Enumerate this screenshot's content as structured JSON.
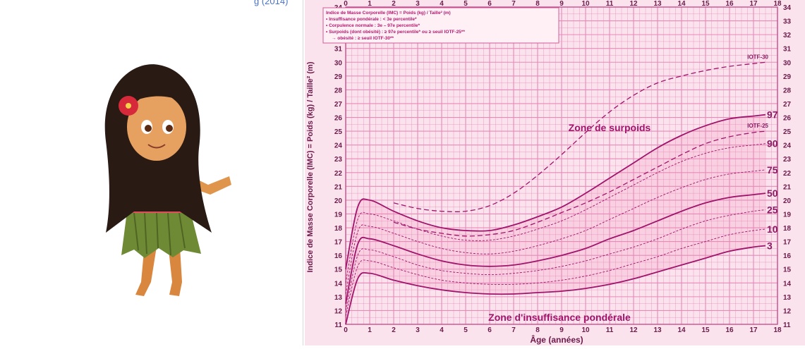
{
  "top_link": "g (2014)",
  "chart_data": {
    "type": "line",
    "xlabel": "Âge (années)",
    "ylabel": "Indice de Masse Corporelle (IMC) = Poids (kg) / Taille² (m)",
    "xlim": [
      0,
      18
    ],
    "ylim": [
      11,
      34
    ],
    "x_ticks": [
      "0",
      "1",
      "2",
      "3",
      "4",
      "5",
      "6",
      "7",
      "8",
      "9",
      "10",
      "11",
      "12",
      "13",
      "14",
      "15",
      "16",
      "17",
      "18"
    ],
    "y_ticks": [
      "11",
      "12",
      "13",
      "14",
      "15",
      "16",
      "17",
      "18",
      "19",
      "20",
      "21",
      "22",
      "23",
      "24",
      "25",
      "26",
      "27",
      "28",
      "29",
      "30",
      "31",
      "32",
      "33",
      "34"
    ],
    "grid": true,
    "legend": [
      "Indice de Masse Corporelle (IMC) = Poids (kg) / Taille² (m)",
      "• Insuffisance pondérale : < 3e percentile*",
      "• Corpulence normale : 3e – 97e percentile*",
      "• Surpoids (dont obésité) : ≥ 97e percentile* ou ≥ seuil IOTF-25**",
      "→ obésité : ≥ seuil IOTF-30**"
    ],
    "legend_position": "top-left",
    "annotations": [
      "Zone de surpoids",
      "Zone d'insuffisance pondérale"
    ],
    "x": [
      0,
      0.5,
      1,
      2,
      3,
      4,
      5,
      6,
      7,
      8,
      9,
      10,
      11,
      12,
      13,
      14,
      15,
      16,
      17,
      17.5
    ],
    "series": [
      {
        "name": "3",
        "style": "solid",
        "values": [
          11.0,
          14.3,
          14.7,
          14.2,
          13.8,
          13.5,
          13.3,
          13.2,
          13.2,
          13.3,
          13.4,
          13.6,
          13.9,
          14.3,
          14.8,
          15.3,
          15.8,
          16.3,
          16.6,
          16.7
        ]
      },
      {
        "name": "10",
        "style": "solid",
        "values": [
          11.6,
          15.2,
          15.6,
          15.1,
          14.6,
          14.2,
          14.0,
          13.9,
          13.9,
          14.0,
          14.2,
          14.5,
          14.9,
          15.4,
          15.9,
          16.5,
          17.0,
          17.5,
          17.8,
          17.9
        ]
      },
      {
        "name": "25",
        "style": "solid",
        "values": [
          12.0,
          16.0,
          16.4,
          15.9,
          15.3,
          14.9,
          14.7,
          14.6,
          14.7,
          14.9,
          15.2,
          15.6,
          16.1,
          16.6,
          17.2,
          17.9,
          18.5,
          18.9,
          19.2,
          19.3
        ]
      },
      {
        "name": "50",
        "style": "solid",
        "values": [
          12.5,
          16.8,
          17.2,
          16.7,
          16.1,
          15.6,
          15.3,
          15.2,
          15.3,
          15.6,
          16.0,
          16.5,
          17.2,
          17.8,
          18.5,
          19.2,
          19.8,
          20.2,
          20.4,
          20.5
        ]
      },
      {
        "name": "75",
        "style": "solid",
        "values": [
          13.2,
          17.7,
          18.1,
          17.6,
          17.0,
          16.5,
          16.2,
          16.1,
          16.3,
          16.7,
          17.2,
          17.8,
          18.6,
          19.4,
          20.2,
          20.9,
          21.5,
          21.9,
          22.1,
          22.2
        ]
      },
      {
        "name": "90",
        "style": "solid",
        "values": [
          14.0,
          18.6,
          19.0,
          18.5,
          17.9,
          17.4,
          17.1,
          17.1,
          17.4,
          17.9,
          18.5,
          19.3,
          20.2,
          21.1,
          22.0,
          22.8,
          23.4,
          23.8,
          24.0,
          24.1
        ]
      },
      {
        "name": "97",
        "style": "solid",
        "values": [
          15.0,
          19.5,
          20.0,
          19.2,
          18.5,
          18.0,
          17.8,
          17.8,
          18.2,
          18.8,
          19.5,
          20.5,
          21.6,
          22.7,
          23.8,
          24.7,
          25.4,
          25.9,
          26.1,
          26.2
        ]
      },
      {
        "name": "IOTF-25",
        "style": "dashed",
        "values": [
          null,
          null,
          null,
          18.4,
          17.9,
          17.6,
          17.4,
          17.5,
          17.8,
          18.4,
          19.1,
          19.8,
          20.6,
          21.5,
          22.4,
          23.3,
          24.1,
          24.6,
          24.9,
          25.0
        ]
      },
      {
        "name": "IOTF-30",
        "style": "dashed",
        "values": [
          null,
          null,
          null,
          19.8,
          19.4,
          19.2,
          19.2,
          19.6,
          20.5,
          21.8,
          23.3,
          24.9,
          26.4,
          27.6,
          28.5,
          29.0,
          29.4,
          29.7,
          29.9,
          30.0
        ]
      }
    ]
  },
  "colors": {
    "line": "#a0146b",
    "grid": "#e889b8",
    "band": "#f7c9dc",
    "paper": "#fbe3ee",
    "legend_box": "#fff0f6"
  }
}
